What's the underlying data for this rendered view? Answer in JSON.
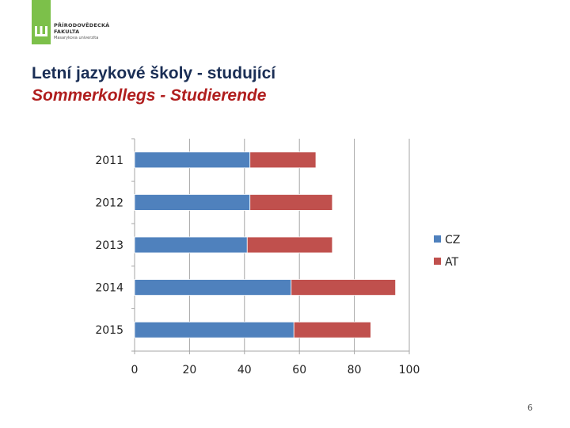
{
  "header": {
    "logo_line1": "PŘÍRODOVĚDECKÁ",
    "logo_line2": "FAKULTA",
    "logo_line3": "Masarykova univerzita",
    "title": "Letní jazykové školy - studující",
    "subtitle": "Sommerkollegs - Studierende"
  },
  "colors": {
    "cz": "#4f81bd",
    "at": "#c0504d",
    "logo_green": "#7cc04a",
    "axis": "#a6a6a6"
  },
  "chart_data": {
    "type": "bar",
    "orientation": "horizontal",
    "stacked": true,
    "categories": [
      "2011",
      "2012",
      "2013",
      "2014",
      "2015"
    ],
    "series": [
      {
        "name": "CZ",
        "values": [
          42,
          42,
          41,
          57,
          58
        ]
      },
      {
        "name": "AT",
        "values": [
          24,
          30,
          31,
          38,
          28
        ]
      }
    ],
    "xlim": [
      0,
      100
    ],
    "xticks": [
      "0",
      "20",
      "40",
      "60",
      "80",
      "100"
    ],
    "xlabel": "",
    "ylabel": "",
    "grid": true,
    "legend": "right"
  },
  "footer": {
    "page_number": "6"
  }
}
